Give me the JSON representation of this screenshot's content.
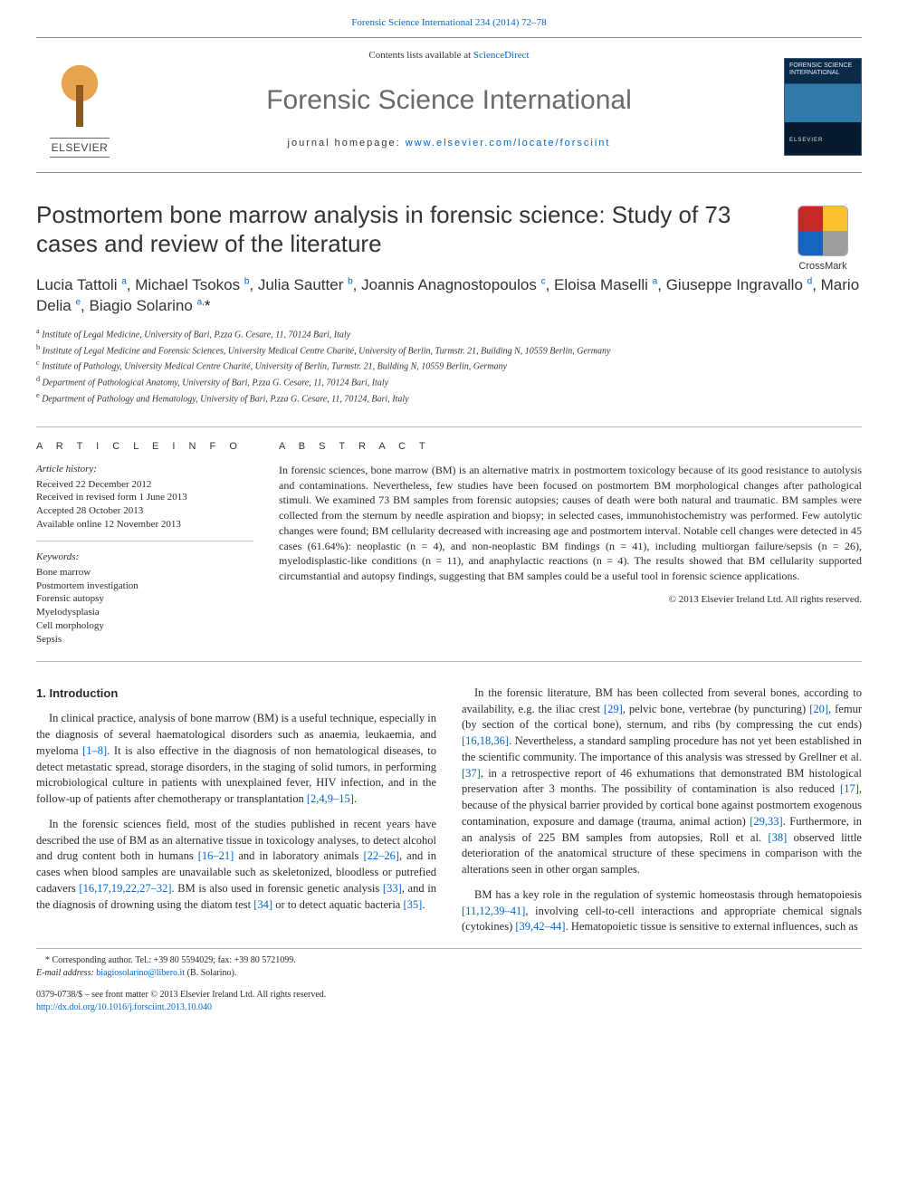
{
  "colors": {
    "link": "#0066cc",
    "text": "#2a2a2a",
    "headerGrey": "#6a6a6a",
    "rule": "#b8b8b8",
    "background": "#ffffff"
  },
  "pageHeader": {
    "citation": "Forensic Science International 234 (2014) 72–78"
  },
  "masthead": {
    "publisher": "ELSEVIER",
    "availableLinePrefix": "Contents lists available at ",
    "availableLineLink": "ScienceDirect",
    "journalName": "Forensic Science International",
    "homepageLabel": "journal homepage: ",
    "homepageUrl": "www.elsevier.com/locate/forsciint",
    "coverTop": "FORENSIC SCIENCE INTERNATIONAL",
    "coverBottom": "ELSEVIER"
  },
  "crossmark": {
    "label": "CrossMark"
  },
  "article": {
    "title": "Postmortem bone marrow analysis in forensic science: Study of 73 cases and review of the literature",
    "authorsHtml": "Lucia Tattoli <sup>a</sup>, Michael Tsokos <sup>b</sup>, Julia Sautter <sup>b</sup>, Joannis Anagnostopoulos <sup>c</sup>, Eloisa Maselli <sup>a</sup>, Giuseppe Ingravallo <sup>d</sup>, Mario Delia <sup>e</sup>, Biagio Solarino <sup>a,</sup><span class='star'>*</span>",
    "affiliations": [
      {
        "tag": "a",
        "text": "Institute of Legal Medicine, University of Bari, P.zza G. Cesare, 11, 70124 Bari, Italy"
      },
      {
        "tag": "b",
        "text": "Institute of Legal Medicine and Forensic Sciences, University Medical Centre Charité, University of Berlin, Turmstr. 21, Building N, 10559 Berlin, Germany"
      },
      {
        "tag": "c",
        "text": "Institute of Pathology, University Medical Centre Charité, University of Berlin, Turmstr. 21, Building N, 10559 Berlin, Germany"
      },
      {
        "tag": "d",
        "text": "Department of Pathological Anatomy, University of Bari, P.zza G. Cesare, 11, 70124 Bari, Italy"
      },
      {
        "tag": "e",
        "text": "Department of Pathology and Hematology, University of Bari, P.zza G. Cesare, 11, 70124, Bari, Italy"
      }
    ]
  },
  "articleInfo": {
    "head": "A R T I C L E   I N F O",
    "historyHead": "Article history:",
    "history": [
      "Received 22 December 2012",
      "Received in revised form 1 June 2013",
      "Accepted 28 October 2013",
      "Available online 12 November 2013"
    ],
    "keywordsHead": "Keywords:",
    "keywords": [
      "Bone marrow",
      "Postmortem investigation",
      "Forensic autopsy",
      "Myelodysplasia",
      "Cell morphology",
      "Sepsis"
    ]
  },
  "abstract": {
    "head": "A B S T R A C T",
    "text": "In forensic sciences, bone marrow (BM) is an alternative matrix in postmortem toxicology because of its good resistance to autolysis and contaminations. Nevertheless, few studies have been focused on postmortem BM morphological changes after pathological stimuli. We examined 73 BM samples from forensic autopsies; causes of death were both natural and traumatic. BM samples were collected from the sternum by needle aspiration and biopsy; in selected cases, immunohistochemistry was performed. Few autolytic changes were found; BM cellularity decreased with increasing age and postmortem interval. Notable cell changes were detected in 45 cases (61.64%): neoplastic (n = 4), and non-neoplastic BM findings (n = 41), including multiorgan failure/sepsis (n = 26), myelodisplastic-like conditions (n = 11), and anaphylactic reactions (n = 4). The results showed that BM cellularity supported circumstantial and autopsy findings, suggesting that BM samples could be a useful tool in forensic science applications.",
    "copyright": "© 2013 Elsevier Ireland Ltd. All rights reserved."
  },
  "body": {
    "heading": "1. Introduction",
    "p1_a": "In clinical practice, analysis of bone marrow (BM) is a useful technique, especially in the diagnosis of several haematological disorders such as anaemia, leukaemia, and myeloma ",
    "p1_ref1": "[1–8]",
    "p1_b": ". It is also effective in the diagnosis of non hematological diseases, to detect metastatic spread, storage disorders, in the staging of solid tumors, in performing microbiological culture in patients with unexplained fever, HIV infection, and in the follow-up of patients after chemotherapy or transplantation ",
    "p1_ref2": "[2,4,9–15]",
    "p1_c": ".",
    "p2_a": "In the forensic sciences field, most of the studies published in recent years have described the use of BM as an alternative tissue in toxicology analyses, to detect alcohol and drug content both in humans ",
    "p2_ref1": "[16–21]",
    "p2_b": " and in laboratory animals ",
    "p2_ref2": "[22–26]",
    "p2_c": ", and in cases when blood samples are unavailable such as skeletonized, bloodless or putrefied cadavers ",
    "p2_ref3": "[16,17,19,22,27–32]",
    "p2_d": ". BM is also used in forensic genetic analysis ",
    "p2_ref4": "[33]",
    "p2_e": ", and in the diagnosis of drowning using the diatom test ",
    "p2_ref5": "[34]",
    "p2_f": " or to detect aquatic bacteria ",
    "p2_ref6": "[35]",
    "p2_g": ".",
    "p3_a": "In the forensic literature, BM has been collected from several bones, according to availability, e.g. the iliac crest ",
    "p3_ref1": "[29]",
    "p3_b": ", pelvic bone, vertebrae (by puncturing) ",
    "p3_ref2": "[20]",
    "p3_c": ", femur (by section of the cortical bone), sternum, and ribs (by compressing the cut ends) ",
    "p3_ref3": "[16,18,36]",
    "p3_d": ". Nevertheless, a standard sampling procedure has not yet been established in the scientific community. The importance of this analysis was stressed by Grellner et al. ",
    "p3_ref4": "[37]",
    "p3_e": ", in a retrospective report of 46 exhumations that demonstrated BM histological preservation after 3 months. The possibility of contamination is also reduced ",
    "p3_ref5": "[17]",
    "p3_f": ", because of the physical barrier provided by cortical bone against postmortem exogenous contamination, exposure and damage (trauma, animal action) ",
    "p3_ref6": "[29,33]",
    "p3_g": ". Furthermore, in an analysis of 225 BM samples from autopsies, Roll et al. ",
    "p3_ref7": "[38]",
    "p3_h": " observed little deterioration of the anatomical structure of these specimens in comparison with the alterations seen in other organ samples.",
    "p4_a": "BM has a key role in the regulation of systemic homeostasis through hematopoiesis ",
    "p4_ref1": "[11,12,39–41]",
    "p4_b": ", involving cell-to-cell interactions and appropriate chemical signals (cytokines) ",
    "p4_ref2": "[39,42–44]",
    "p4_c": ". Hematopoietic tissue is sensitive to external influences, such as"
  },
  "footer": {
    "corresponding": "* Corresponding author. Tel.: +39 80 5594029; fax: +39 80 5721099.",
    "emailLabel": "E-mail address: ",
    "email": "biagiosolarino@libero.it",
    "emailTail": " (B. Solarino).",
    "frontMatter": "0379-0738/$ – see front matter © 2013 Elsevier Ireland Ltd. All rights reserved.",
    "doi": "http://dx.doi.org/10.1016/j.forsciint.2013.10.040"
  }
}
